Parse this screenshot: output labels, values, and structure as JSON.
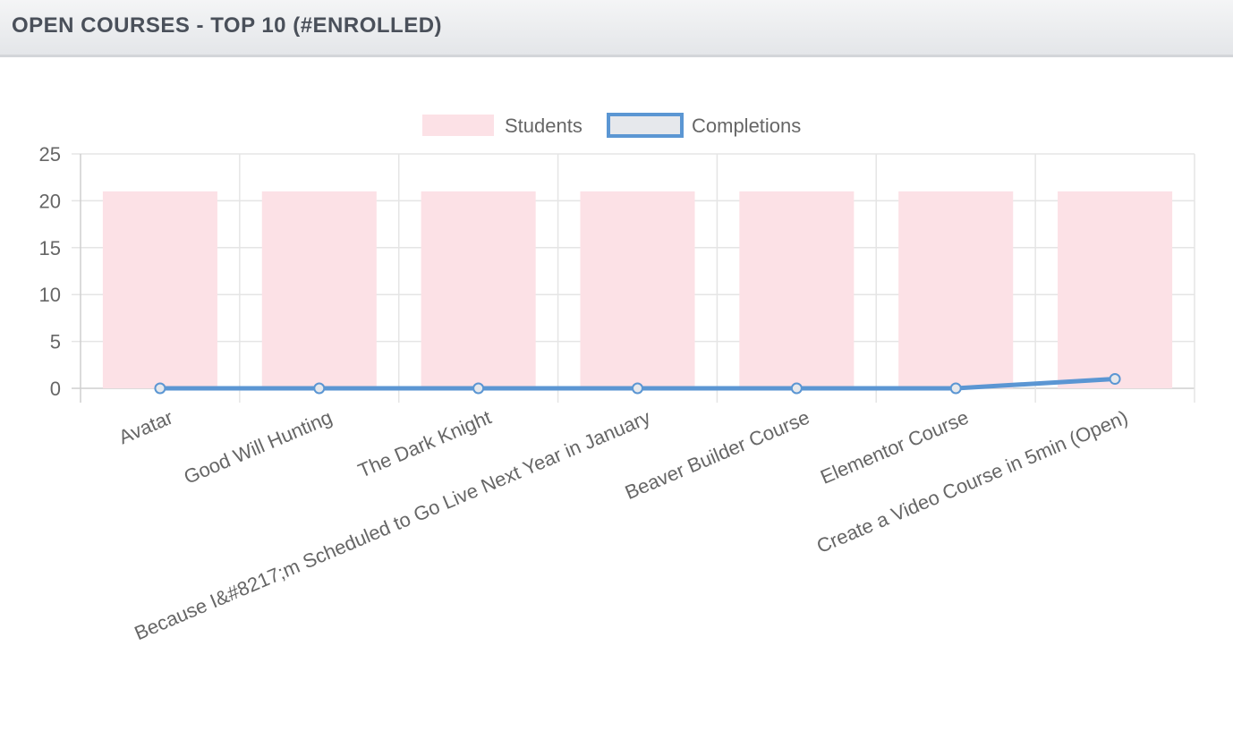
{
  "header": {
    "title": "OPEN COURSES - TOP 10 (#ENROLLED)"
  },
  "colors": {
    "students_fill": "#fce1e6",
    "completions_line": "#5b96d3",
    "completions_fill": "#e6e8ec",
    "grid": "#e5e5e5",
    "axis_text": "#666666"
  },
  "chart_data": {
    "type": "bar",
    "title": "",
    "xlabel": "",
    "ylabel": "",
    "ylim": [
      0,
      25
    ],
    "yticks": [
      0,
      5,
      10,
      15,
      20,
      25
    ],
    "grid": true,
    "legend_position": "top",
    "categories": [
      "Avatar",
      "Good Will Hunting",
      "The Dark Knight",
      "Because I&#8217;m Scheduled to Go Live Next Year in January",
      "Beaver Builder Course",
      "Elementor Course",
      "Create a Video Course in 5min (Open)"
    ],
    "series": [
      {
        "name": "Students",
        "type": "bar",
        "values": [
          21,
          21,
          21,
          21,
          21,
          21,
          21
        ]
      },
      {
        "name": "Completions",
        "type": "line",
        "values": [
          0,
          0,
          0,
          0,
          0,
          0,
          1
        ]
      }
    ]
  }
}
